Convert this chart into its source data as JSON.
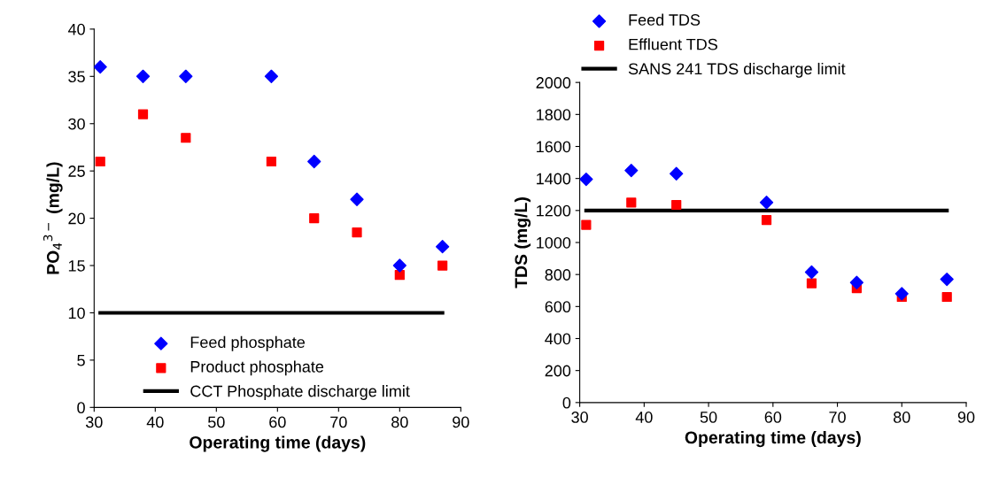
{
  "chart_data": [
    {
      "type": "scatter",
      "xlabel": "Operating time (days)",
      "ylabel": "PO$_{4}$$^{3−}$ (mg/L)",
      "xlim": [
        30,
        90
      ],
      "xticks": [
        30,
        40,
        50,
        60,
        70,
        80,
        90
      ],
      "ylim": [
        0,
        40
      ],
      "yticks": [
        0,
        5,
        10,
        15,
        20,
        25,
        30,
        35,
        40
      ],
      "grid": false,
      "legend": "bottom",
      "series": [
        {
          "name": "Feed phosphate",
          "color": "#0000ff",
          "marker": "diamond",
          "x": [
            31,
            38,
            45,
            59,
            66,
            73,
            80,
            87
          ],
          "values": [
            36,
            35,
            35,
            35,
            26,
            22,
            15,
            17
          ]
        },
        {
          "name": "Product phosphate",
          "color": "#ff0000",
          "marker": "square",
          "x": [
            31,
            38,
            45,
            59,
            66,
            73,
            80,
            87
          ],
          "values": [
            26,
            31,
            28.5,
            26,
            20,
            18.5,
            14,
            15
          ]
        },
        {
          "name": "CCT Phosphate discharge limit",
          "type": "line",
          "color": "#000000",
          "marker": "none",
          "x": [
            31,
            87
          ],
          "values": [
            10,
            10
          ]
        }
      ]
    },
    {
      "type": "scatter",
      "xlabel": "Operating time (days)",
      "ylabel": "TDS (mg/L)",
      "xlim": [
        30,
        90
      ],
      "xticks": [
        30,
        40,
        50,
        60,
        70,
        80,
        90
      ],
      "ylim": [
        0,
        2000
      ],
      "yticks": [
        0,
        200,
        400,
        600,
        800,
        1000,
        1200,
        1400,
        1600,
        1800,
        2000
      ],
      "grid": false,
      "legend": "top left",
      "series": [
        {
          "name": "Feed TDS",
          "color": "#0000ff",
          "marker": "diamond",
          "x": [
            31,
            38,
            45,
            59,
            66,
            73,
            80,
            87
          ],
          "values": [
            1395,
            1450,
            1430,
            1250,
            815,
            750,
            680,
            770
          ]
        },
        {
          "name": "Effluent TDS",
          "color": "#ff0000",
          "marker": "square",
          "x": [
            31,
            38,
            45,
            59,
            66,
            73,
            80,
            87
          ],
          "values": [
            1110,
            1250,
            1235,
            1140,
            745,
            715,
            660,
            660
          ]
        },
        {
          "name": "SANS 241 TDS discharge limit",
          "type": "line",
          "color": "#000000",
          "marker": "none",
          "x": [
            31,
            87
          ],
          "values": [
            1200,
            1200
          ]
        }
      ]
    }
  ]
}
